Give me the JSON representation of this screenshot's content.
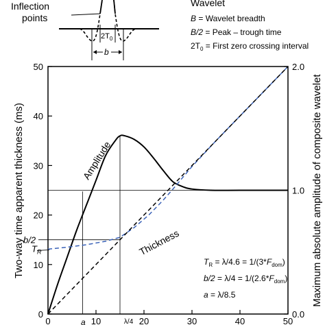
{
  "chart_data": {
    "type": "line",
    "xlabel": "",
    "ylabel_left": "Two-way time apparent thickness (ms)",
    "ylabel_right": "Maximum absolute amplitude of composite wavelet",
    "xlim": [
      0,
      50
    ],
    "ylim_left": [
      0,
      50
    ],
    "ylim_right": [
      0.0,
      2.0
    ],
    "x_ticks": [
      "0",
      "10",
      "20",
      "30",
      "40",
      "50"
    ],
    "y_ticks_left": [
      "0",
      "10",
      "20",
      "30",
      "40",
      "50"
    ],
    "y_ticks_right": [
      "0.0",
      "1.0",
      "2.0"
    ],
    "grid": false,
    "series": [
      {
        "name": "Amplitude",
        "color": "#000000",
        "dash": "solid",
        "axis": "right",
        "x": [
          0,
          2,
          4,
          6,
          8,
          10,
          12,
          14,
          15,
          16,
          18,
          20,
          22,
          24,
          26,
          28,
          30,
          34,
          40,
          50
        ],
        "y": [
          0.0,
          0.24,
          0.46,
          0.68,
          0.88,
          1.08,
          1.28,
          1.4,
          1.44,
          1.44,
          1.41,
          1.35,
          1.26,
          1.16,
          1.07,
          1.03,
          1.01,
          1.0,
          1.0,
          1.0
        ]
      },
      {
        "name": "Thickness",
        "color": "#3a62b8",
        "dash": "dashed",
        "axis": "left",
        "x": [
          0,
          4,
          8,
          12,
          15,
          18,
          21,
          24,
          26,
          28,
          30,
          35,
          40,
          45,
          50
        ],
        "y": [
          13.1,
          13.5,
          14.0,
          14.7,
          15.5,
          17.5,
          20.0,
          23.0,
          25.2,
          27.5,
          29.8,
          35,
          40,
          45,
          50
        ]
      },
      {
        "color": "#000000",
        "dash": "dashed",
        "axis": "left",
        "x": [
          0,
          50
        ],
        "y": [
          0,
          50
        ]
      }
    ],
    "annotations": {
      "amplitude_label": "Amplitude",
      "thickness_label": "Thickness",
      "tr_label": "T",
      "tr_sub": "R",
      "b2_label": "b/2",
      "a_label": "a",
      "x15_label": "λ/4",
      "eq1_a": "T",
      "eq1_sub": "R",
      "eq1_b": " = λ/4.6 = 1/(3*",
      "eq1_c": "F",
      "eq1_sub2": "dom",
      "eq1_d": ")",
      "eq2_a": "b/2",
      "eq2_b": " = λ/4 = 1/(2.6*",
      "eq2_c": "F",
      "eq2_sub2": "dom",
      "eq2_d": ")",
      "eq3_a": "a",
      "eq3_b": " = λ/8.5"
    },
    "reference_lines": {
      "amplitude_peak_x": 15,
      "b2_y": 15,
      "tr_y": 13.1,
      "a_x": 7.2,
      "unit_amplitude": 1.0
    }
  },
  "wavelet_inset": {
    "title": "Wavelet",
    "inflection_label_1": "Inflection",
    "inflection_label_2": "points",
    "t0_label": "2T",
    "t0_sub": "0",
    "b_label": "b",
    "legend": [
      {
        "sym": "B",
        "rest": " = Wavelet breadth"
      },
      {
        "sym": "B/2",
        "rest": " = Peak – trough time"
      },
      {
        "sym": "2T",
        "sub": "0",
        "rest": " = First zero crossing interval"
      }
    ]
  }
}
